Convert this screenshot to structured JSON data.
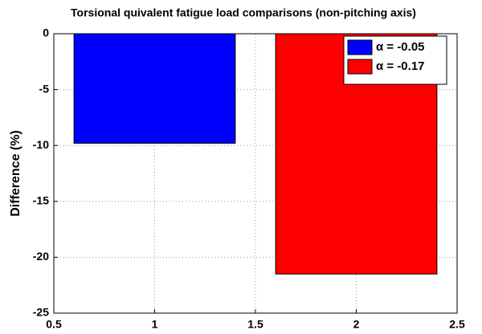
{
  "chart_data": {
    "type": "bar",
    "title": "Torsional quivalent fatigue load comparisons (non-pitching axis)",
    "y_label": "Difference (%)",
    "series": [
      {
        "name": "α = -0.05",
        "color": "#0000ff",
        "x": [
          1
        ],
        "values": [
          -9.8
        ]
      },
      {
        "name": "α = -0.17",
        "color": "#ff0000",
        "x": [
          2
        ],
        "values": [
          -21.5
        ]
      }
    ],
    "xlim": [
      0.5,
      2.5
    ],
    "xticks": [
      0.5,
      1,
      1.5,
      2,
      2.5
    ],
    "ylim": [
      -25,
      0
    ],
    "yticks": [
      -25,
      -20,
      -15,
      -10,
      -5,
      0
    ],
    "grid": true,
    "legend_position": "upper right"
  }
}
